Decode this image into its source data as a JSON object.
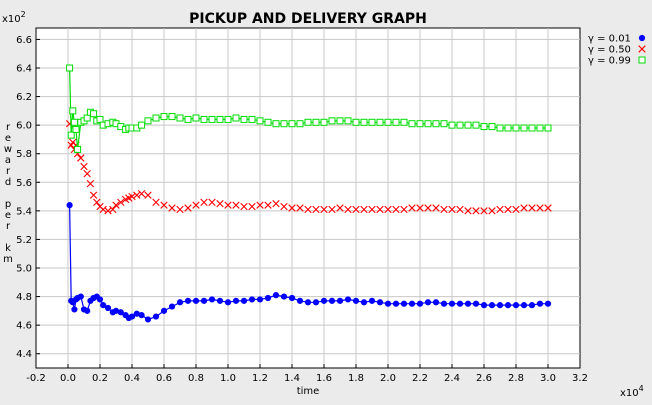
{
  "chart_data": {
    "type": "line",
    "title": "PICKUP AND DELIVERY GRAPH",
    "xlabel": "time",
    "ylabel": "reward per km",
    "x_multiplier": "x10^4",
    "y_multiplier": "x10^2",
    "xlim": [
      -0.2,
      3.2
    ],
    "ylim": [
      4.3,
      6.68
    ],
    "x_ticks": [
      "-0.2",
      "0.0",
      "0.2",
      "0.4",
      "0.6",
      "0.8",
      "1.0",
      "1.2",
      "1.4",
      "1.6",
      "1.8",
      "2.0",
      "2.2",
      "2.4",
      "2.6",
      "2.8",
      "3.0",
      "3.2"
    ],
    "y_ticks": [
      "4.4",
      "4.6",
      "4.8",
      "5.0",
      "5.2",
      "5.4",
      "5.6",
      "5.8",
      "6.0",
      "6.2",
      "6.4",
      "6.6"
    ],
    "grid": true,
    "legend_position": "top-right",
    "series": [
      {
        "name": "γ = 0.01",
        "color": "#0000ff",
        "marker": "filled-circle",
        "connected": true,
        "points": [
          [
            0.01,
            5.44
          ],
          [
            0.02,
            4.77
          ],
          [
            0.03,
            4.76
          ],
          [
            0.04,
            4.71
          ],
          [
            0.05,
            4.78
          ],
          [
            0.06,
            4.79
          ],
          [
            0.08,
            4.8
          ],
          [
            0.1,
            4.71
          ],
          [
            0.12,
            4.7
          ],
          [
            0.14,
            4.77
          ],
          [
            0.16,
            4.79
          ],
          [
            0.18,
            4.8
          ],
          [
            0.2,
            4.78
          ],
          [
            0.22,
            4.74
          ],
          [
            0.25,
            4.72
          ],
          [
            0.28,
            4.69
          ],
          [
            0.3,
            4.7
          ],
          [
            0.33,
            4.69
          ],
          [
            0.36,
            4.67
          ],
          [
            0.38,
            4.65
          ],
          [
            0.4,
            4.66
          ],
          [
            0.43,
            4.68
          ],
          [
            0.46,
            4.67
          ],
          [
            0.5,
            4.64
          ],
          [
            0.55,
            4.66
          ],
          [
            0.6,
            4.7
          ],
          [
            0.65,
            4.73
          ],
          [
            0.7,
            4.76
          ],
          [
            0.75,
            4.77
          ],
          [
            0.8,
            4.77
          ],
          [
            0.85,
            4.77
          ],
          [
            0.9,
            4.78
          ],
          [
            0.95,
            4.77
          ],
          [
            1.0,
            4.76
          ],
          [
            1.05,
            4.77
          ],
          [
            1.1,
            4.77
          ],
          [
            1.15,
            4.78
          ],
          [
            1.2,
            4.78
          ],
          [
            1.25,
            4.79
          ],
          [
            1.3,
            4.81
          ],
          [
            1.35,
            4.8
          ],
          [
            1.4,
            4.79
          ],
          [
            1.45,
            4.77
          ],
          [
            1.5,
            4.76
          ],
          [
            1.55,
            4.76
          ],
          [
            1.6,
            4.77
          ],
          [
            1.65,
            4.77
          ],
          [
            1.7,
            4.77
          ],
          [
            1.75,
            4.78
          ],
          [
            1.8,
            4.77
          ],
          [
            1.85,
            4.76
          ],
          [
            1.9,
            4.77
          ],
          [
            1.95,
            4.76
          ],
          [
            2.0,
            4.75
          ],
          [
            2.05,
            4.75
          ],
          [
            2.1,
            4.75
          ],
          [
            2.15,
            4.75
          ],
          [
            2.2,
            4.75
          ],
          [
            2.25,
            4.76
          ],
          [
            2.3,
            4.76
          ],
          [
            2.35,
            4.75
          ],
          [
            2.4,
            4.75
          ],
          [
            2.45,
            4.75
          ],
          [
            2.5,
            4.75
          ],
          [
            2.55,
            4.75
          ],
          [
            2.6,
            4.74
          ],
          [
            2.65,
            4.74
          ],
          [
            2.7,
            4.74
          ],
          [
            2.75,
            4.74
          ],
          [
            2.8,
            4.74
          ],
          [
            2.85,
            4.74
          ],
          [
            2.9,
            4.74
          ],
          [
            2.95,
            4.75
          ],
          [
            3.0,
            4.75
          ]
        ]
      },
      {
        "name": "γ = 0.50",
        "color": "#ff0000",
        "marker": "x",
        "connected": false,
        "points": [
          [
            0.01,
            6.01
          ],
          [
            0.02,
            5.86
          ],
          [
            0.03,
            5.88
          ],
          [
            0.04,
            5.83
          ],
          [
            0.05,
            5.86
          ],
          [
            0.06,
            5.8
          ],
          [
            0.08,
            5.77
          ],
          [
            0.1,
            5.71
          ],
          [
            0.12,
            5.66
          ],
          [
            0.14,
            5.59
          ],
          [
            0.16,
            5.51
          ],
          [
            0.18,
            5.46
          ],
          [
            0.2,
            5.43
          ],
          [
            0.22,
            5.41
          ],
          [
            0.25,
            5.4
          ],
          [
            0.28,
            5.41
          ],
          [
            0.3,
            5.44
          ],
          [
            0.33,
            5.46
          ],
          [
            0.36,
            5.48
          ],
          [
            0.38,
            5.49
          ],
          [
            0.4,
            5.5
          ],
          [
            0.43,
            5.51
          ],
          [
            0.46,
            5.52
          ],
          [
            0.5,
            5.51
          ],
          [
            0.55,
            5.46
          ],
          [
            0.6,
            5.44
          ],
          [
            0.65,
            5.42
          ],
          [
            0.7,
            5.41
          ],
          [
            0.75,
            5.42
          ],
          [
            0.8,
            5.44
          ],
          [
            0.85,
            5.46
          ],
          [
            0.9,
            5.46
          ],
          [
            0.95,
            5.45
          ],
          [
            1.0,
            5.44
          ],
          [
            1.05,
            5.44
          ],
          [
            1.1,
            5.43
          ],
          [
            1.15,
            5.43
          ],
          [
            1.2,
            5.44
          ],
          [
            1.25,
            5.44
          ],
          [
            1.3,
            5.45
          ],
          [
            1.35,
            5.43
          ],
          [
            1.4,
            5.42
          ],
          [
            1.45,
            5.42
          ],
          [
            1.5,
            5.41
          ],
          [
            1.55,
            5.41
          ],
          [
            1.6,
            5.41
          ],
          [
            1.65,
            5.41
          ],
          [
            1.7,
            5.42
          ],
          [
            1.75,
            5.41
          ],
          [
            1.8,
            5.41
          ],
          [
            1.85,
            5.41
          ],
          [
            1.9,
            5.41
          ],
          [
            1.95,
            5.41
          ],
          [
            2.0,
            5.41
          ],
          [
            2.05,
            5.41
          ],
          [
            2.1,
            5.41
          ],
          [
            2.15,
            5.42
          ],
          [
            2.2,
            5.42
          ],
          [
            2.25,
            5.42
          ],
          [
            2.3,
            5.42
          ],
          [
            2.35,
            5.41
          ],
          [
            2.4,
            5.41
          ],
          [
            2.45,
            5.41
          ],
          [
            2.5,
            5.4
          ],
          [
            2.55,
            5.4
          ],
          [
            2.6,
            5.4
          ],
          [
            2.65,
            5.4
          ],
          [
            2.7,
            5.41
          ],
          [
            2.75,
            5.41
          ],
          [
            2.8,
            5.41
          ],
          [
            2.85,
            5.42
          ],
          [
            2.9,
            5.42
          ],
          [
            2.95,
            5.42
          ],
          [
            3.0,
            5.42
          ]
        ]
      },
      {
        "name": "γ = 0.99",
        "color": "#00dd00",
        "marker": "open-square",
        "connected": true,
        "points": [
          [
            0.01,
            6.4
          ],
          [
            0.02,
            5.93
          ],
          [
            0.03,
            6.1
          ],
          [
            0.04,
            6.02
          ],
          [
            0.05,
            5.97
          ],
          [
            0.06,
            5.83
          ],
          [
            0.08,
            6.02
          ],
          [
            0.1,
            6.03
          ],
          [
            0.12,
            6.05
          ],
          [
            0.14,
            6.09
          ],
          [
            0.16,
            6.08
          ],
          [
            0.18,
            6.03
          ],
          [
            0.2,
            6.04
          ],
          [
            0.22,
            6.0
          ],
          [
            0.25,
            6.01
          ],
          [
            0.28,
            6.02
          ],
          [
            0.3,
            6.01
          ],
          [
            0.33,
            5.99
          ],
          [
            0.36,
            5.97
          ],
          [
            0.38,
            5.98
          ],
          [
            0.4,
            5.98
          ],
          [
            0.43,
            5.98
          ],
          [
            0.46,
            6.0
          ],
          [
            0.5,
            6.03
          ],
          [
            0.55,
            6.05
          ],
          [
            0.6,
            6.06
          ],
          [
            0.65,
            6.06
          ],
          [
            0.7,
            6.05
          ],
          [
            0.75,
            6.04
          ],
          [
            0.8,
            6.05
          ],
          [
            0.85,
            6.04
          ],
          [
            0.9,
            6.04
          ],
          [
            0.95,
            6.04
          ],
          [
            1.0,
            6.04
          ],
          [
            1.05,
            6.05
          ],
          [
            1.1,
            6.04
          ],
          [
            1.15,
            6.04
          ],
          [
            1.2,
            6.03
          ],
          [
            1.25,
            6.02
          ],
          [
            1.3,
            6.01
          ],
          [
            1.35,
            6.01
          ],
          [
            1.4,
            6.01
          ],
          [
            1.45,
            6.01
          ],
          [
            1.5,
            6.02
          ],
          [
            1.55,
            6.02
          ],
          [
            1.6,
            6.02
          ],
          [
            1.65,
            6.03
          ],
          [
            1.7,
            6.03
          ],
          [
            1.75,
            6.03
          ],
          [
            1.8,
            6.02
          ],
          [
            1.85,
            6.02
          ],
          [
            1.9,
            6.02
          ],
          [
            1.95,
            6.02
          ],
          [
            2.0,
            6.02
          ],
          [
            2.05,
            6.02
          ],
          [
            2.1,
            6.02
          ],
          [
            2.15,
            6.01
          ],
          [
            2.2,
            6.01
          ],
          [
            2.25,
            6.01
          ],
          [
            2.3,
            6.01
          ],
          [
            2.35,
            6.01
          ],
          [
            2.4,
            6.0
          ],
          [
            2.45,
            6.0
          ],
          [
            2.5,
            6.0
          ],
          [
            2.55,
            6.0
          ],
          [
            2.6,
            5.99
          ],
          [
            2.65,
            5.99
          ],
          [
            2.7,
            5.98
          ],
          [
            2.75,
            5.98
          ],
          [
            2.8,
            5.98
          ],
          [
            2.85,
            5.98
          ],
          [
            2.9,
            5.98
          ],
          [
            2.95,
            5.98
          ],
          [
            3.0,
            5.98
          ]
        ]
      }
    ]
  }
}
